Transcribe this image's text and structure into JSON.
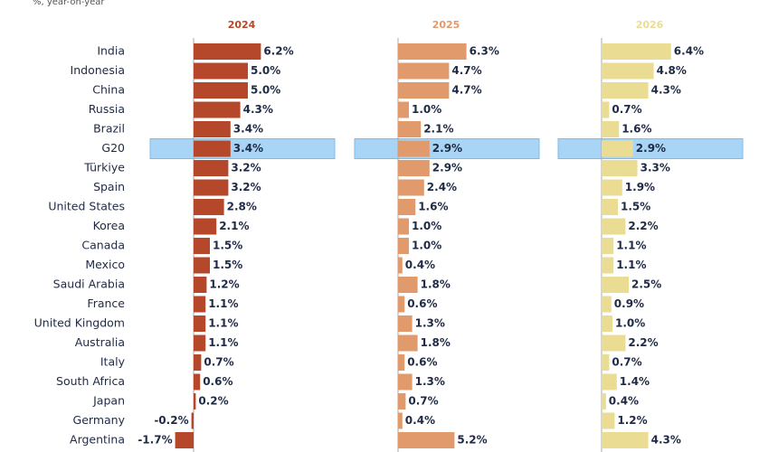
{
  "chart_data": {
    "type": "bar",
    "orientation": "horizontal",
    "subtitle": "%, year-on-year",
    "categories": [
      "India",
      "Indonesia",
      "China",
      "Russia",
      "Brazil",
      "G20",
      "Türkiye",
      "Spain",
      "United States",
      "Korea",
      "Canada",
      "Mexico",
      "Saudi Arabia",
      "France",
      "United Kingdom",
      "Australia",
      "Italy",
      "South Africa",
      "Japan",
      "Germany",
      "Argentina"
    ],
    "highlight": "G20",
    "xlim": [
      -4,
      13
    ],
    "series": [
      {
        "name": "2024",
        "color": "#b5482a",
        "values": [
          6.2,
          5.0,
          5.0,
          4.3,
          3.4,
          3.4,
          3.2,
          3.2,
          2.8,
          2.1,
          1.5,
          1.5,
          1.2,
          1.1,
          1.1,
          1.1,
          0.7,
          0.6,
          0.2,
          -0.2,
          -1.7
        ],
        "value_labels": [
          "6.2%",
          "5.0%",
          "5.0%",
          "4.3%",
          "3.4%",
          "3.4%",
          "3.2%",
          "3.2%",
          "2.8%",
          "2.1%",
          "1.5%",
          "1.5%",
          "1.2%",
          "1.1%",
          "1.1%",
          "1.1%",
          "0.7%",
          "0.6%",
          "0.2%",
          "-0.2%",
          "-1.7%"
        ]
      },
      {
        "name": "2025",
        "color": "#e09a6c",
        "values": [
          6.3,
          4.7,
          4.7,
          1.0,
          2.1,
          2.9,
          2.9,
          2.4,
          1.6,
          1.0,
          1.0,
          0.4,
          1.8,
          0.6,
          1.3,
          1.8,
          0.6,
          1.3,
          0.7,
          0.4,
          5.2
        ],
        "value_labels": [
          "6.3%",
          "4.7%",
          "4.7%",
          "1.0%",
          "2.1%",
          "2.9%",
          "2.9%",
          "2.4%",
          "1.6%",
          "1.0%",
          "1.0%",
          "0.4%",
          "1.8%",
          "0.6%",
          "1.3%",
          "1.8%",
          "0.6%",
          "1.3%",
          "0.7%",
          "0.4%",
          "5.2%"
        ]
      },
      {
        "name": "2026",
        "color": "#ebdc94",
        "values": [
          6.4,
          4.8,
          4.3,
          0.7,
          1.6,
          2.9,
          3.3,
          1.9,
          1.5,
          2.2,
          1.1,
          1.1,
          2.5,
          0.9,
          1.0,
          2.2,
          0.7,
          1.4,
          0.4,
          1.2,
          4.3
        ],
        "value_labels": [
          "6.4%",
          "4.8%",
          "4.3%",
          "0.7%",
          "1.6%",
          "2.9%",
          "3.3%",
          "1.9%",
          "1.5%",
          "2.2%",
          "1.1%",
          "1.1%",
          "2.5%",
          "0.9%",
          "1.0%",
          "2.2%",
          "0.7%",
          "1.4%",
          "0.4%",
          "1.2%",
          "4.3%"
        ]
      }
    ]
  }
}
